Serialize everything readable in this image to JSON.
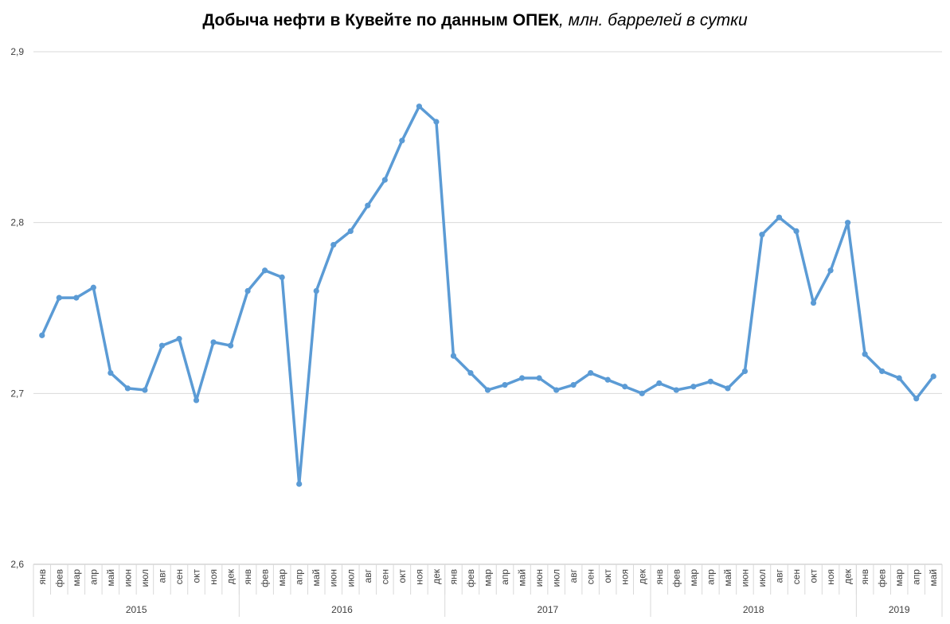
{
  "title": {
    "main": "Добыча нефти в Кувейте по данным ОПЕК",
    "unit": ", млн. баррелей в сутки"
  },
  "chart_data": {
    "type": "line",
    "title": "Добыча нефти в Кувейте по данным ОПЕК, млн. баррелей в сутки",
    "ylim": [
      2.6,
      2.9
    ],
    "y_ticks": [
      "2,6",
      "2,7",
      "2,8",
      "2,9"
    ],
    "grid": true,
    "legend": "none",
    "color": "#5b9bd5",
    "years": [
      {
        "label": "2015",
        "months": 12
      },
      {
        "label": "2016",
        "months": 12
      },
      {
        "label": "2017",
        "months": 12
      },
      {
        "label": "2018",
        "months": 12
      },
      {
        "label": "2019",
        "months": 5
      }
    ],
    "x": [
      "янв",
      "фев",
      "мар",
      "апр",
      "май",
      "июн",
      "июл",
      "авг",
      "сен",
      "окт",
      "ноя",
      "дек",
      "янв",
      "фев",
      "мар",
      "апр",
      "май",
      "июн",
      "июл",
      "авг",
      "сен",
      "окт",
      "ноя",
      "дек",
      "янв",
      "фев",
      "мар",
      "апр",
      "май",
      "июн",
      "июл",
      "авг",
      "сен",
      "окт",
      "ноя",
      "дек",
      "янв",
      "фев",
      "мар",
      "апр",
      "май",
      "июн",
      "июл",
      "авг",
      "сен",
      "окт",
      "ноя",
      "дек",
      "янв",
      "фев",
      "мар",
      "апр",
      "май"
    ],
    "series": [
      {
        "values": [
          2.734,
          2.756,
          2.756,
          2.762,
          2.712,
          2.703,
          2.702,
          2.728,
          2.732,
          2.696,
          2.73,
          2.728,
          2.76,
          2.772,
          2.768,
          2.647,
          2.76,
          2.787,
          2.795,
          2.81,
          2.825,
          2.848,
          2.868,
          2.859,
          2.722,
          2.712,
          2.702,
          2.705,
          2.709,
          2.709,
          2.702,
          2.705,
          2.712,
          2.708,
          2.704,
          2.7,
          2.706,
          2.702,
          2.704,
          2.707,
          2.703,
          2.713,
          2.793,
          2.803,
          2.795,
          2.753,
          2.772,
          2.8,
          2.723,
          2.713,
          2.709,
          2.697,
          2.71
        ]
      }
    ]
  }
}
